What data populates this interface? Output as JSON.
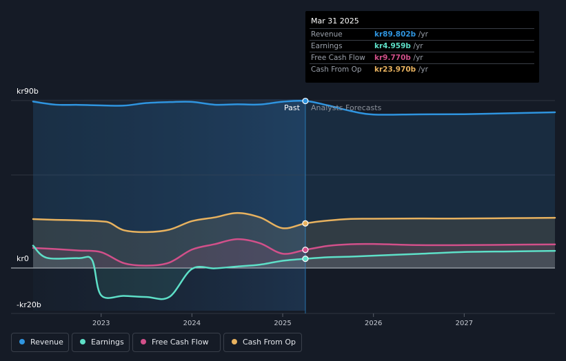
{
  "colors": {
    "revenue": "#2f95e0",
    "earnings": "#5ee0c8",
    "free_cash_flow": "#d2508a",
    "cash_from_op": "#e8b25f",
    "background": "#151b26",
    "grid": "#2e3440"
  },
  "tooltip": {
    "date": "Mar 31 2025",
    "rows": [
      {
        "label": "Revenue",
        "value": "kr89.802b",
        "unit": "/yr",
        "color": "#2f95e0"
      },
      {
        "label": "Earnings",
        "value": "kr4.959b",
        "unit": "/yr",
        "color": "#5ee0c8"
      },
      {
        "label": "Free Cash Flow",
        "value": "kr9.770b",
        "unit": "/yr",
        "color": "#d2508a"
      },
      {
        "label": "Cash From Op",
        "value": "kr23.970b",
        "unit": "/yr",
        "color": "#e8b25f"
      }
    ]
  },
  "legend": [
    {
      "label": "Revenue",
      "color": "#2f95e0"
    },
    {
      "label": "Earnings",
      "color": "#5ee0c8"
    },
    {
      "label": "Free Cash Flow",
      "color": "#d2508a"
    },
    {
      "label": "Cash From Op",
      "color": "#e8b25f"
    }
  ],
  "chart_data": {
    "type": "line",
    "title": "",
    "xlabel": "",
    "ylabel": "",
    "x_ticks": [
      2023,
      2024,
      2025,
      2026,
      2027
    ],
    "x_range": [
      2022.25,
      2028.0
    ],
    "ylim": [
      -20,
      90
    ],
    "y_tick_labels": [
      {
        "value": 90,
        "label": "kr90b"
      },
      {
        "value": 0,
        "label": "kr0"
      },
      {
        "value": -20,
        "label": "-kr20b"
      }
    ],
    "gridlines": [
      90,
      50,
      0
    ],
    "divider_x": 2025.25,
    "past_label": "Past",
    "forecast_label": "Analysts Forecasts",
    "series": [
      {
        "name": "Revenue",
        "key": "revenue",
        "points": [
          [
            2022.25,
            89.5
          ],
          [
            2022.5,
            87.8
          ],
          [
            2022.75,
            87.7
          ],
          [
            2023.0,
            87.4
          ],
          [
            2023.25,
            87.3
          ],
          [
            2023.5,
            88.7
          ],
          [
            2023.75,
            89.2
          ],
          [
            2024.0,
            89.3
          ],
          [
            2024.25,
            87.8
          ],
          [
            2024.5,
            88.0
          ],
          [
            2024.75,
            87.9
          ],
          [
            2025.0,
            89.4
          ],
          [
            2025.25,
            89.8
          ],
          [
            2025.5,
            87.4
          ],
          [
            2025.75,
            84.4
          ],
          [
            2026.0,
            82.5
          ],
          [
            2026.5,
            82.6
          ],
          [
            2027.0,
            82.7
          ],
          [
            2027.5,
            83.2
          ],
          [
            2028.0,
            83.7
          ]
        ]
      },
      {
        "name": "Cash From Op",
        "key": "cash_from_op",
        "points": [
          [
            2022.25,
            26.3
          ],
          [
            2022.5,
            25.9
          ],
          [
            2022.75,
            25.6
          ],
          [
            2023.0,
            25.1
          ],
          [
            2023.1,
            24.2
          ],
          [
            2023.25,
            20.3
          ],
          [
            2023.5,
            19.3
          ],
          [
            2023.75,
            20.6
          ],
          [
            2024.0,
            25.2
          ],
          [
            2024.25,
            27.2
          ],
          [
            2024.5,
            29.6
          ],
          [
            2024.75,
            27.2
          ],
          [
            2025.0,
            21.4
          ],
          [
            2025.25,
            23.97
          ],
          [
            2025.5,
            25.5
          ],
          [
            2025.75,
            26.4
          ],
          [
            2026.0,
            26.5
          ],
          [
            2026.5,
            26.6
          ],
          [
            2027.0,
            26.6
          ],
          [
            2027.5,
            26.8
          ],
          [
            2028.0,
            27.0
          ]
        ]
      },
      {
        "name": "Free Cash Flow",
        "key": "free_cash_flow",
        "points": [
          [
            2022.25,
            10.8
          ],
          [
            2022.5,
            10.2
          ],
          [
            2022.75,
            9.4
          ],
          [
            2023.0,
            8.5
          ],
          [
            2023.25,
            2.6
          ],
          [
            2023.5,
            1.3
          ],
          [
            2023.75,
            2.9
          ],
          [
            2024.0,
            9.9
          ],
          [
            2024.25,
            12.8
          ],
          [
            2024.5,
            15.5
          ],
          [
            2024.75,
            13.3
          ],
          [
            2025.0,
            7.7
          ],
          [
            2025.25,
            9.77
          ],
          [
            2025.5,
            11.9
          ],
          [
            2025.75,
            12.8
          ],
          [
            2026.0,
            12.9
          ],
          [
            2026.5,
            12.3
          ],
          [
            2027.0,
            12.3
          ],
          [
            2027.5,
            12.5
          ],
          [
            2028.0,
            12.7
          ]
        ]
      },
      {
        "name": "Earnings",
        "key": "earnings",
        "points": [
          [
            2022.25,
            12.0
          ],
          [
            2022.4,
            5.5
          ],
          [
            2022.75,
            5.3
          ],
          [
            2022.9,
            4.3
          ],
          [
            2023.0,
            -14.7
          ],
          [
            2023.25,
            -15.0
          ],
          [
            2023.5,
            -15.6
          ],
          [
            2023.75,
            -15.6
          ],
          [
            2024.0,
            -0.5
          ],
          [
            2024.25,
            -0.2
          ],
          [
            2024.5,
            0.8
          ],
          [
            2024.75,
            1.8
          ],
          [
            2025.0,
            3.9
          ],
          [
            2025.25,
            4.96
          ],
          [
            2025.5,
            5.8
          ],
          [
            2025.75,
            6.1
          ],
          [
            2026.0,
            6.6
          ],
          [
            2026.5,
            7.6
          ],
          [
            2027.0,
            8.6
          ],
          [
            2027.5,
            8.9
          ],
          [
            2028.0,
            9.2
          ]
        ]
      }
    ]
  }
}
